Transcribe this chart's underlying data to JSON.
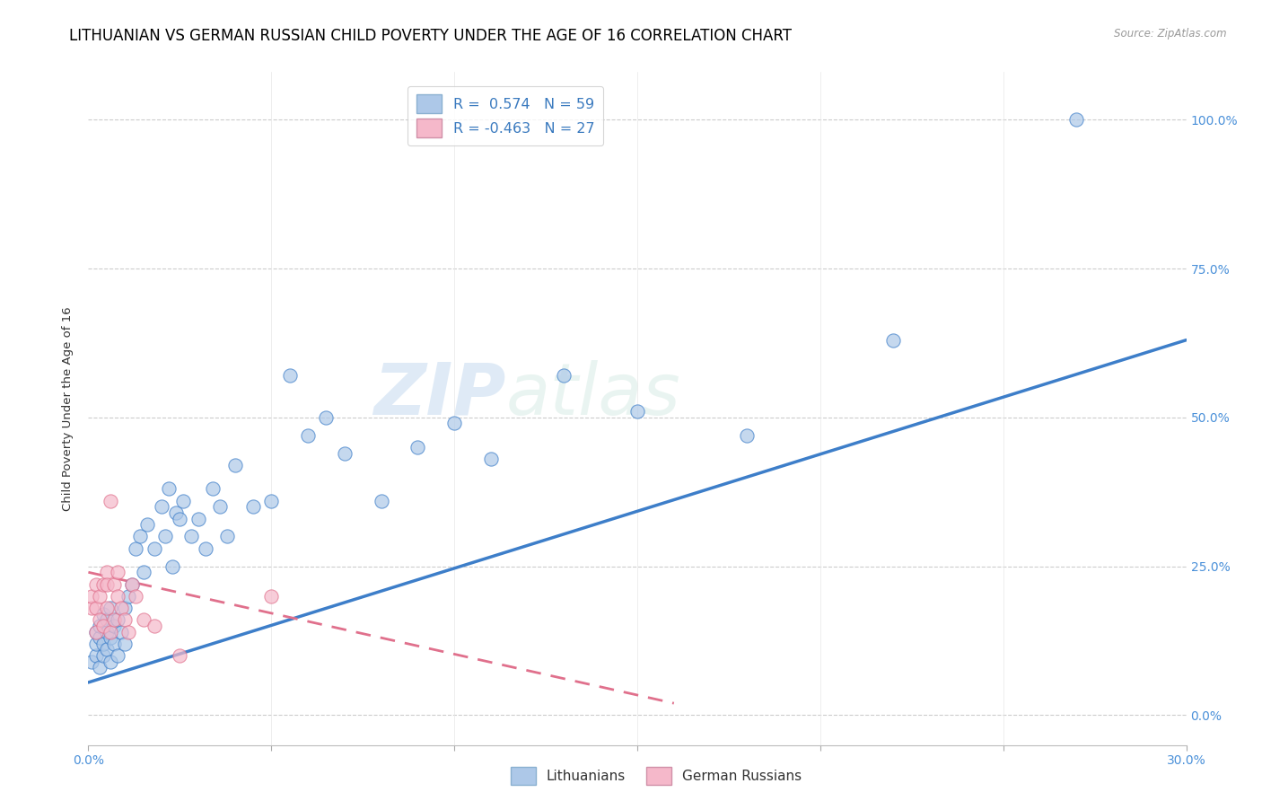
{
  "title": "LITHUANIAN VS GERMAN RUSSIAN CHILD POVERTY UNDER THE AGE OF 16 CORRELATION CHART",
  "source": "Source: ZipAtlas.com",
  "ylabel": "Child Poverty Under the Age of 16",
  "xlim": [
    0.0,
    0.3
  ],
  "ylim": [
    -0.05,
    1.08
  ],
  "legend_label1": "Lithuanians",
  "legend_label2": "German Russians",
  "R1": 0.574,
  "N1": 59,
  "R2": -0.463,
  "N2": 27,
  "color1": "#adc8e8",
  "color2": "#f5b8ca",
  "line_color1": "#3d7ec9",
  "line_color2": "#e0708c",
  "watermark_zip": "ZIP",
  "watermark_atlas": "atlas",
  "title_fontsize": 12,
  "axis_fontsize": 10,
  "lith_x": [
    0.001,
    0.002,
    0.002,
    0.002,
    0.003,
    0.003,
    0.003,
    0.004,
    0.004,
    0.004,
    0.005,
    0.005,
    0.005,
    0.006,
    0.006,
    0.006,
    0.007,
    0.007,
    0.008,
    0.008,
    0.009,
    0.01,
    0.01,
    0.011,
    0.012,
    0.013,
    0.014,
    0.015,
    0.016,
    0.018,
    0.02,
    0.021,
    0.022,
    0.023,
    0.024,
    0.025,
    0.026,
    0.028,
    0.03,
    0.032,
    0.034,
    0.036,
    0.038,
    0.04,
    0.045,
    0.05,
    0.055,
    0.06,
    0.065,
    0.07,
    0.08,
    0.09,
    0.1,
    0.11,
    0.13,
    0.15,
    0.18,
    0.22,
    0.27
  ],
  "lith_y": [
    0.09,
    0.1,
    0.12,
    0.14,
    0.08,
    0.13,
    0.15,
    0.1,
    0.12,
    0.17,
    0.11,
    0.14,
    0.16,
    0.09,
    0.13,
    0.18,
    0.12,
    0.15,
    0.1,
    0.16,
    0.14,
    0.12,
    0.18,
    0.2,
    0.22,
    0.28,
    0.3,
    0.24,
    0.32,
    0.28,
    0.35,
    0.3,
    0.38,
    0.25,
    0.34,
    0.33,
    0.36,
    0.3,
    0.33,
    0.28,
    0.38,
    0.35,
    0.3,
    0.42,
    0.35,
    0.36,
    0.57,
    0.47,
    0.5,
    0.44,
    0.36,
    0.45,
    0.49,
    0.43,
    0.57,
    0.51,
    0.47,
    0.63,
    1.0
  ],
  "gr_x": [
    0.001,
    0.001,
    0.002,
    0.002,
    0.002,
    0.003,
    0.003,
    0.004,
    0.004,
    0.005,
    0.005,
    0.005,
    0.006,
    0.006,
    0.007,
    0.007,
    0.008,
    0.008,
    0.009,
    0.01,
    0.011,
    0.012,
    0.013,
    0.015,
    0.018,
    0.025,
    0.05
  ],
  "gr_y": [
    0.18,
    0.2,
    0.14,
    0.18,
    0.22,
    0.16,
    0.2,
    0.22,
    0.15,
    0.24,
    0.18,
    0.22,
    0.36,
    0.14,
    0.16,
    0.22,
    0.2,
    0.24,
    0.18,
    0.16,
    0.14,
    0.22,
    0.2,
    0.16,
    0.15,
    0.1,
    0.2
  ],
  "lith_line_x0": 0.0,
  "lith_line_y0": 0.055,
  "lith_line_x1": 0.3,
  "lith_line_y1": 0.63,
  "gr_line_x0": 0.0,
  "gr_line_y0": 0.24,
  "gr_line_x1": 0.16,
  "gr_line_y1": 0.02
}
